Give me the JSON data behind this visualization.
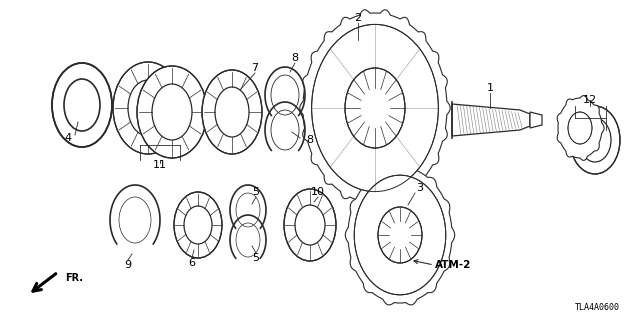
{
  "bg_color": "#ffffff",
  "part_number_label": "TLA4A0600",
  "direction_label": "FR.",
  "fig_width": 6.4,
  "fig_height": 3.2,
  "dpi": 100,
  "line_color": "#2a2a2a",
  "label_color": "#000000"
}
